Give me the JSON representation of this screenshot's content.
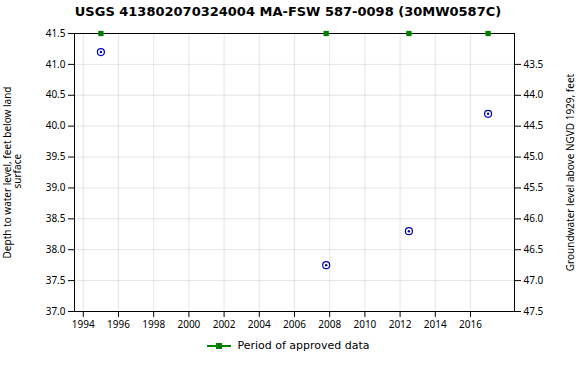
{
  "chart_data": {
    "type": "scatter",
    "title": "USGS 413802070324004 MA-FSW  587-0098 (30MW0587C)",
    "ylabel": "Depth to water level, feet below land\n surface",
    "y2label": "Groundwater level above NGVD 1929, feet",
    "x": [
      1995.0,
      2007.8,
      2012.5,
      2017.0
    ],
    "series": [
      {
        "values": [
          41.2,
          37.75,
          38.3,
          40.2
        ],
        "color": "#0000bb",
        "marker": "circle"
      },
      {
        "name": "Period of approved data",
        "values": [
          41.5,
          41.5,
          41.5,
          41.5
        ],
        "color": "#008000",
        "marker": "square"
      }
    ],
    "xlim": [
      1993.5,
      2018.5
    ],
    "xticks": [
      1994,
      1996,
      1998,
      2000,
      2002,
      2004,
      2006,
      2008,
      2010,
      2012,
      2014,
      2016
    ],
    "ylim": [
      37.0,
      41.5
    ],
    "yticks": [
      {
        "value": 37,
        "label": "37.0"
      },
      37.5,
      {
        "value": 38,
        "label": "38.0"
      },
      38.5,
      {
        "value": 39,
        "label": "39.0"
      },
      39.5,
      {
        "value": 40,
        "label": "40.0"
      },
      40.5,
      {
        "value": 41,
        "label": "41.0"
      },
      41.5
    ],
    "y2lim": [
      47.5,
      43.0
    ],
    "y2ticks": [
      47.5,
      {
        "value": 47,
        "label": "47.0"
      },
      46.5,
      {
        "value": 46,
        "label": "46.0"
      },
      45.5,
      {
        "value": 45,
        "label": "45.0"
      },
      44.5,
      {
        "value": 44,
        "label": "44.0"
      },
      43.5
    ],
    "grid": true,
    "legend": "bottom"
  }
}
